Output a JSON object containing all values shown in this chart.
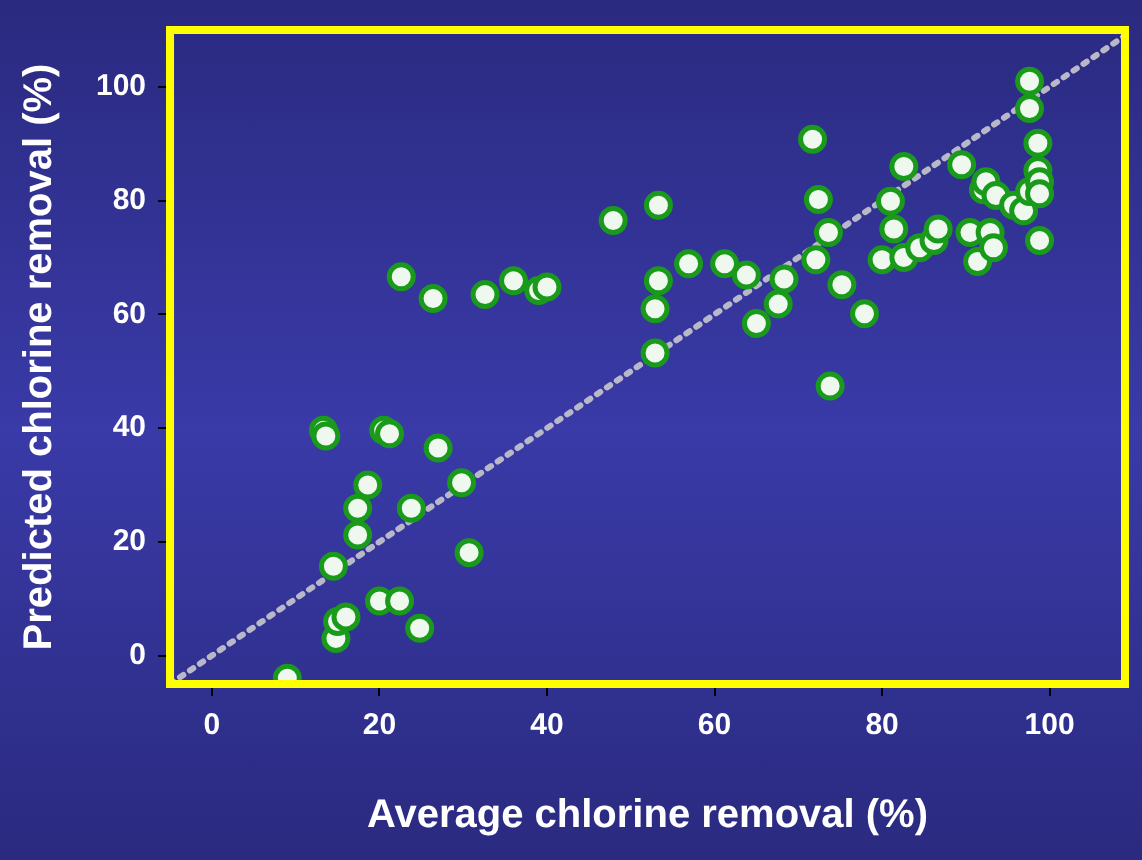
{
  "chart_data": {
    "type": "scatter",
    "xlabel": "Average chlorine removal (%)",
    "ylabel": "Predicted chlorine removal (%)",
    "xlim": [
      -5,
      109
    ],
    "ylim": [
      -5,
      110
    ],
    "xticks": [
      0,
      20,
      40,
      60,
      80,
      100
    ],
    "yticks": [
      0,
      20,
      40,
      60,
      80,
      100
    ],
    "grid": false,
    "legend": false,
    "marker": "circle",
    "series": [
      {
        "color": "#1a9a1a",
        "x": [
          9,
          13.3,
          13.6,
          14.5,
          14.8,
          15,
          16,
          17.4,
          17.4,
          18.6,
          20,
          20.5,
          21.2,
          22.4,
          22.6,
          23.8,
          24.8,
          26.4,
          27,
          29.8,
          30.7,
          32.6,
          36,
          39,
          40,
          47.9,
          52.9,
          52.9,
          53.3,
          53.3,
          56.9,
          61.2,
          63.8,
          65,
          67.6,
          68.3,
          71.7,
          72.1,
          72.4,
          73.6,
          73.8,
          75.2,
          77.9,
          80,
          81,
          81.4,
          82.6,
          82.6,
          84.5,
          86.2,
          86.7,
          89.5,
          90.5,
          91.4,
          92.1,
          92.4,
          92.9,
          93.3,
          93.6,
          95.7,
          96.9,
          97.6,
          97.6,
          97.6,
          98.6,
          98.6,
          98.8,
          98.8,
          98.8
        ],
        "values": [
          -4,
          39.6,
          38.6,
          15.7,
          3,
          6,
          6.8,
          25.9,
          21.2,
          30,
          9.6,
          39.6,
          39,
          9.6,
          66.6,
          25.9,
          4.8,
          62.8,
          36.5,
          30.4,
          18.1,
          63.5,
          65.9,
          64.2,
          64.8,
          76.5,
          61,
          53.2,
          65.9,
          79.2,
          68.9,
          68.9,
          66.9,
          58.4,
          61.8,
          66.2,
          90.8,
          69.6,
          80.2,
          74.4,
          47.4,
          65.2,
          60.1,
          69.6,
          79.9,
          75,
          86,
          70,
          71.7,
          73,
          75,
          86.3,
          74.4,
          69.3,
          81.9,
          83.3,
          74.4,
          71.7,
          80.9,
          79.2,
          78.2,
          101,
          96.2,
          81.6,
          90.1,
          85.3,
          83.3,
          81.2,
          73
        ]
      },
      {
        "type": "line",
        "color": "#b8b8c8",
        "line_style": "dotted",
        "marker": "none",
        "x": [
          -5,
          109
        ],
        "values": [
          -5,
          109
        ]
      }
    ]
  }
}
